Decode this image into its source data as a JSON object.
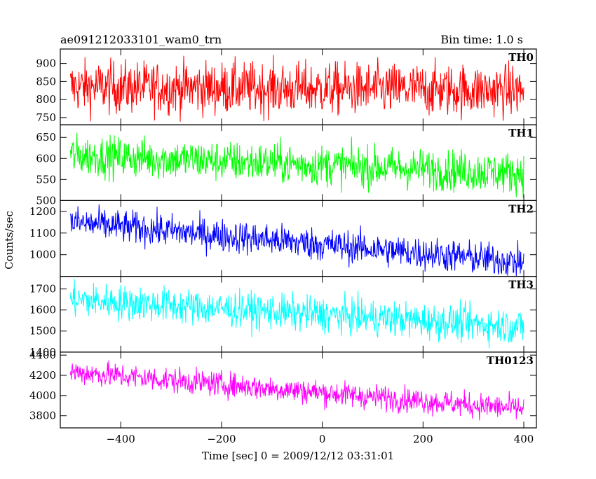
{
  "chart_data": {
    "type": "line",
    "title_left": "ae091212033101_wam0_trn",
    "title_right": "Bin time: 1.0 s",
    "xlabel": "Time [sec] 0 = 2009/12/12 03:31:01",
    "ylabel": "Counts/sec",
    "xlim": [
      -520,
      425
    ],
    "x_range": [
      -500,
      400
    ],
    "x_ticks": [
      -400,
      -200,
      0,
      200,
      400
    ],
    "x_tick_labels": [
      "−400",
      "−200",
      "0",
      "200",
      "400"
    ],
    "grid": false,
    "panels": [
      {
        "name": "TH0",
        "color": "#ff0000",
        "ylim": [
          730,
          940
        ],
        "ticks": [
          750,
          800,
          850,
          900
        ],
        "tick_labels": [
          "750",
          "800",
          "850",
          "900"
        ],
        "start": 835,
        "end": 825,
        "noise": 36
      },
      {
        "name": "TH1",
        "color": "#00ff00",
        "ylim": [
          500,
          680
        ],
        "ticks": [
          500,
          550,
          600,
          650
        ],
        "tick_labels": [
          "500",
          "550",
          "600",
          "650"
        ],
        "start": 608,
        "end": 565,
        "noise": 24
      },
      {
        "name": "TH2",
        "color": "#0000ff",
        "ylim": [
          900,
          1250
        ],
        "ticks": [
          1000,
          1100,
          1200
        ],
        "tick_labels": [
          "1000",
          "1100",
          "1200"
        ],
        "start": 1150,
        "end": 965,
        "noise": 38
      },
      {
        "name": "TH3",
        "color": "#00ffff",
        "ylim": [
          1400,
          1760
        ],
        "ticks": [
          1400,
          1500,
          1600,
          1700
        ],
        "tick_labels": [
          "1400",
          "1500",
          "1600",
          "1700"
        ],
        "start": 1650,
        "end": 1520,
        "noise": 42
      },
      {
        "name": "TH0123",
        "color": "#ff00ff",
        "ylim": [
          3680,
          4430
        ],
        "ticks": [
          3800,
          4000,
          4200,
          4400
        ],
        "tick_labels": [
          "3800",
          "4000",
          "4200",
          "4400"
        ],
        "start": 4235,
        "end": 3865,
        "noise": 62
      }
    ]
  }
}
